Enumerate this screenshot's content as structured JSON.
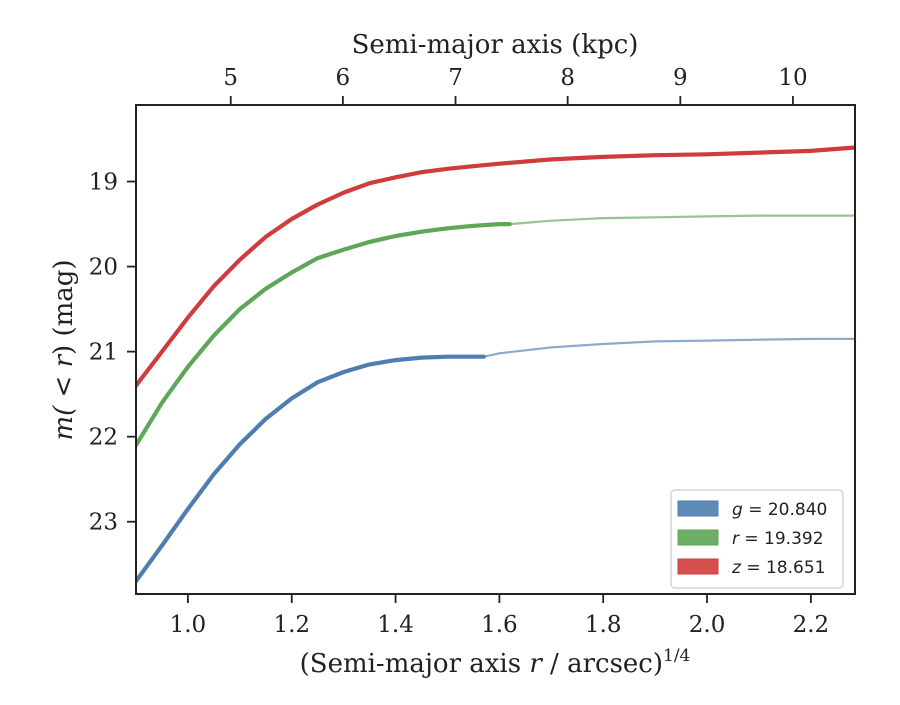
{
  "chart_data": {
    "type": "line",
    "xlabel_prefix": "(Semi-major axis ",
    "xlabel_var": "r",
    "xlabel_suffix": " / arcsec)",
    "xlabel_sup": "1/4",
    "ylabel_pre": "m(",
    "ylabel_lt": " < ",
    "ylabel_var": "r",
    "ylabel_post": ") (mag)",
    "top_xlabel": "Semi-major axis (kpc)",
    "xlim": [
      0.9,
      2.285
    ],
    "ylim": [
      23.85,
      18.1
    ],
    "y_inverted": true,
    "xticks": [
      1.0,
      1.2,
      1.4,
      1.6,
      1.8,
      2.0,
      2.2
    ],
    "xtick_labels": [
      "1.0",
      "1.2",
      "1.4",
      "1.6",
      "1.8",
      "2.0",
      "2.2"
    ],
    "yticks": [
      19,
      20,
      21,
      22,
      23
    ],
    "ytick_labels": [
      "19",
      "20",
      "21",
      "22",
      "23"
    ],
    "top_xticks_kpc": [
      5,
      6,
      7,
      8,
      9,
      10
    ],
    "top_xtick_labels": [
      "5",
      "6",
      "7",
      "8",
      "9",
      "10"
    ],
    "top_xtick_positions": [
      1.0825,
      1.2985,
      1.5155,
      1.7315,
      1.9485,
      2.1655
    ],
    "grid": false,
    "legend_position": "lower-right",
    "series": [
      {
        "key": "g",
        "color": "#4e7eaf",
        "legend_var": "g",
        "legend_value": " = 20.840",
        "data_x": [
          0.9,
          0.95,
          1.0,
          1.05,
          1.1,
          1.15,
          1.2,
          1.25,
          1.3,
          1.35,
          1.4,
          1.45,
          1.5,
          1.55,
          1.57
        ],
        "data_y": [
          23.7,
          23.28,
          22.85,
          22.44,
          22.09,
          21.79,
          21.55,
          21.36,
          21.24,
          21.15,
          21.1,
          21.07,
          21.06,
          21.06,
          21.06
        ],
        "model_x": [
          1.57,
          1.6,
          1.7,
          1.8,
          1.9,
          2.0,
          2.1,
          2.2,
          2.285
        ],
        "model_y": [
          21.06,
          21.02,
          20.95,
          20.91,
          20.88,
          20.87,
          20.86,
          20.85,
          20.85
        ]
      },
      {
        "key": "r",
        "color": "#5ea658",
        "legend_var": "r",
        "legend_value": " = 19.392",
        "data_x": [
          0.9,
          0.95,
          1.0,
          1.05,
          1.1,
          1.15,
          1.2,
          1.25,
          1.3,
          1.35,
          1.4,
          1.45,
          1.5,
          1.55,
          1.6,
          1.62
        ],
        "data_y": [
          22.1,
          21.6,
          21.18,
          20.81,
          20.5,
          20.26,
          20.07,
          19.9,
          19.8,
          19.71,
          19.64,
          19.59,
          19.55,
          19.52,
          19.5,
          19.5
        ],
        "model_x": [
          1.62,
          1.7,
          1.8,
          1.9,
          2.0,
          2.1,
          2.2,
          2.285
        ],
        "model_y": [
          19.5,
          19.46,
          19.43,
          19.42,
          19.41,
          19.4,
          19.4,
          19.4
        ]
      },
      {
        "key": "z",
        "color": "#d03c3c",
        "legend_var": "z",
        "legend_value": " = 18.651",
        "data_x": [
          0.9,
          0.95,
          1.0,
          1.05,
          1.1,
          1.15,
          1.2,
          1.25,
          1.3,
          1.35,
          1.4,
          1.45,
          1.5,
          1.55,
          1.6,
          1.7,
          1.8,
          1.9,
          2.0,
          2.1,
          2.2,
          2.285
        ],
        "data_y": [
          21.4,
          21.0,
          20.6,
          20.23,
          19.92,
          19.65,
          19.44,
          19.27,
          19.13,
          19.02,
          18.95,
          18.89,
          18.85,
          18.82,
          18.79,
          18.74,
          18.71,
          18.69,
          18.68,
          18.66,
          18.64,
          18.6
        ],
        "model_x": [],
        "model_y": []
      }
    ]
  }
}
